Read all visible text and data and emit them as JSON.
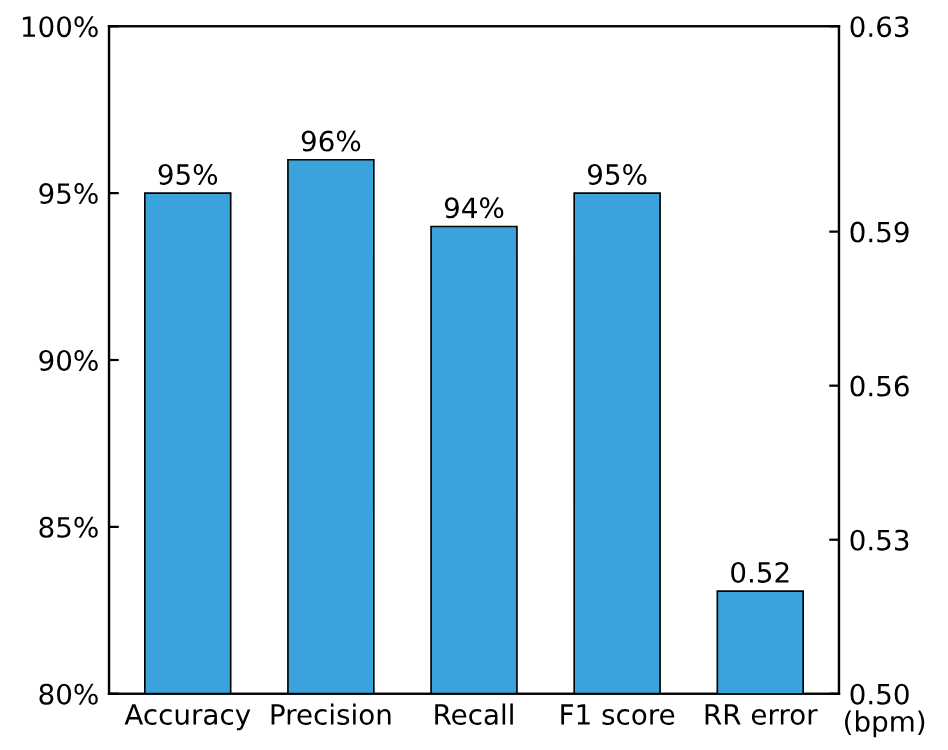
{
  "chart_data": {
    "type": "bar",
    "categories": [
      "Accuracy",
      "Precision",
      "Recall",
      "F1 score",
      "RR error"
    ],
    "series": [
      {
        "color": "#3ba3dc",
        "values": [
          95,
          96,
          94,
          95,
          null
        ],
        "value_labels": [
          "95%",
          "96%",
          "94%",
          "95%",
          null
        ]
      },
      {
        "color": "#3ba3dc",
        "axis": "y2",
        "values": [
          null,
          null,
          null,
          null,
          0.52
        ],
        "value_labels": [
          null,
          null,
          null,
          null,
          "0.52"
        ]
      }
    ],
    "ylim": [
      80,
      100
    ],
    "yticks": [
      {
        "value": 80,
        "label": "80%"
      },
      {
        "value": 85,
        "label": "85%"
      },
      {
        "value": 90,
        "label": "90%"
      },
      {
        "value": 95,
        "label": "95%"
      },
      {
        "value": 100,
        "label": "100%"
      }
    ],
    "y2lim": [
      0.5,
      0.63
    ],
    "y2ticks": [
      {
        "value": 0.5,
        "label": "0.50"
      },
      {
        "value": 0.53,
        "label": "0.53"
      },
      {
        "value": 0.56,
        "label": "0.56"
      },
      {
        "value": 0.59,
        "label": "0.59"
      },
      {
        "value": 0.63,
        "label": "0.63"
      }
    ],
    "y2label": "(bpm)",
    "grid": false,
    "legend": false
  }
}
